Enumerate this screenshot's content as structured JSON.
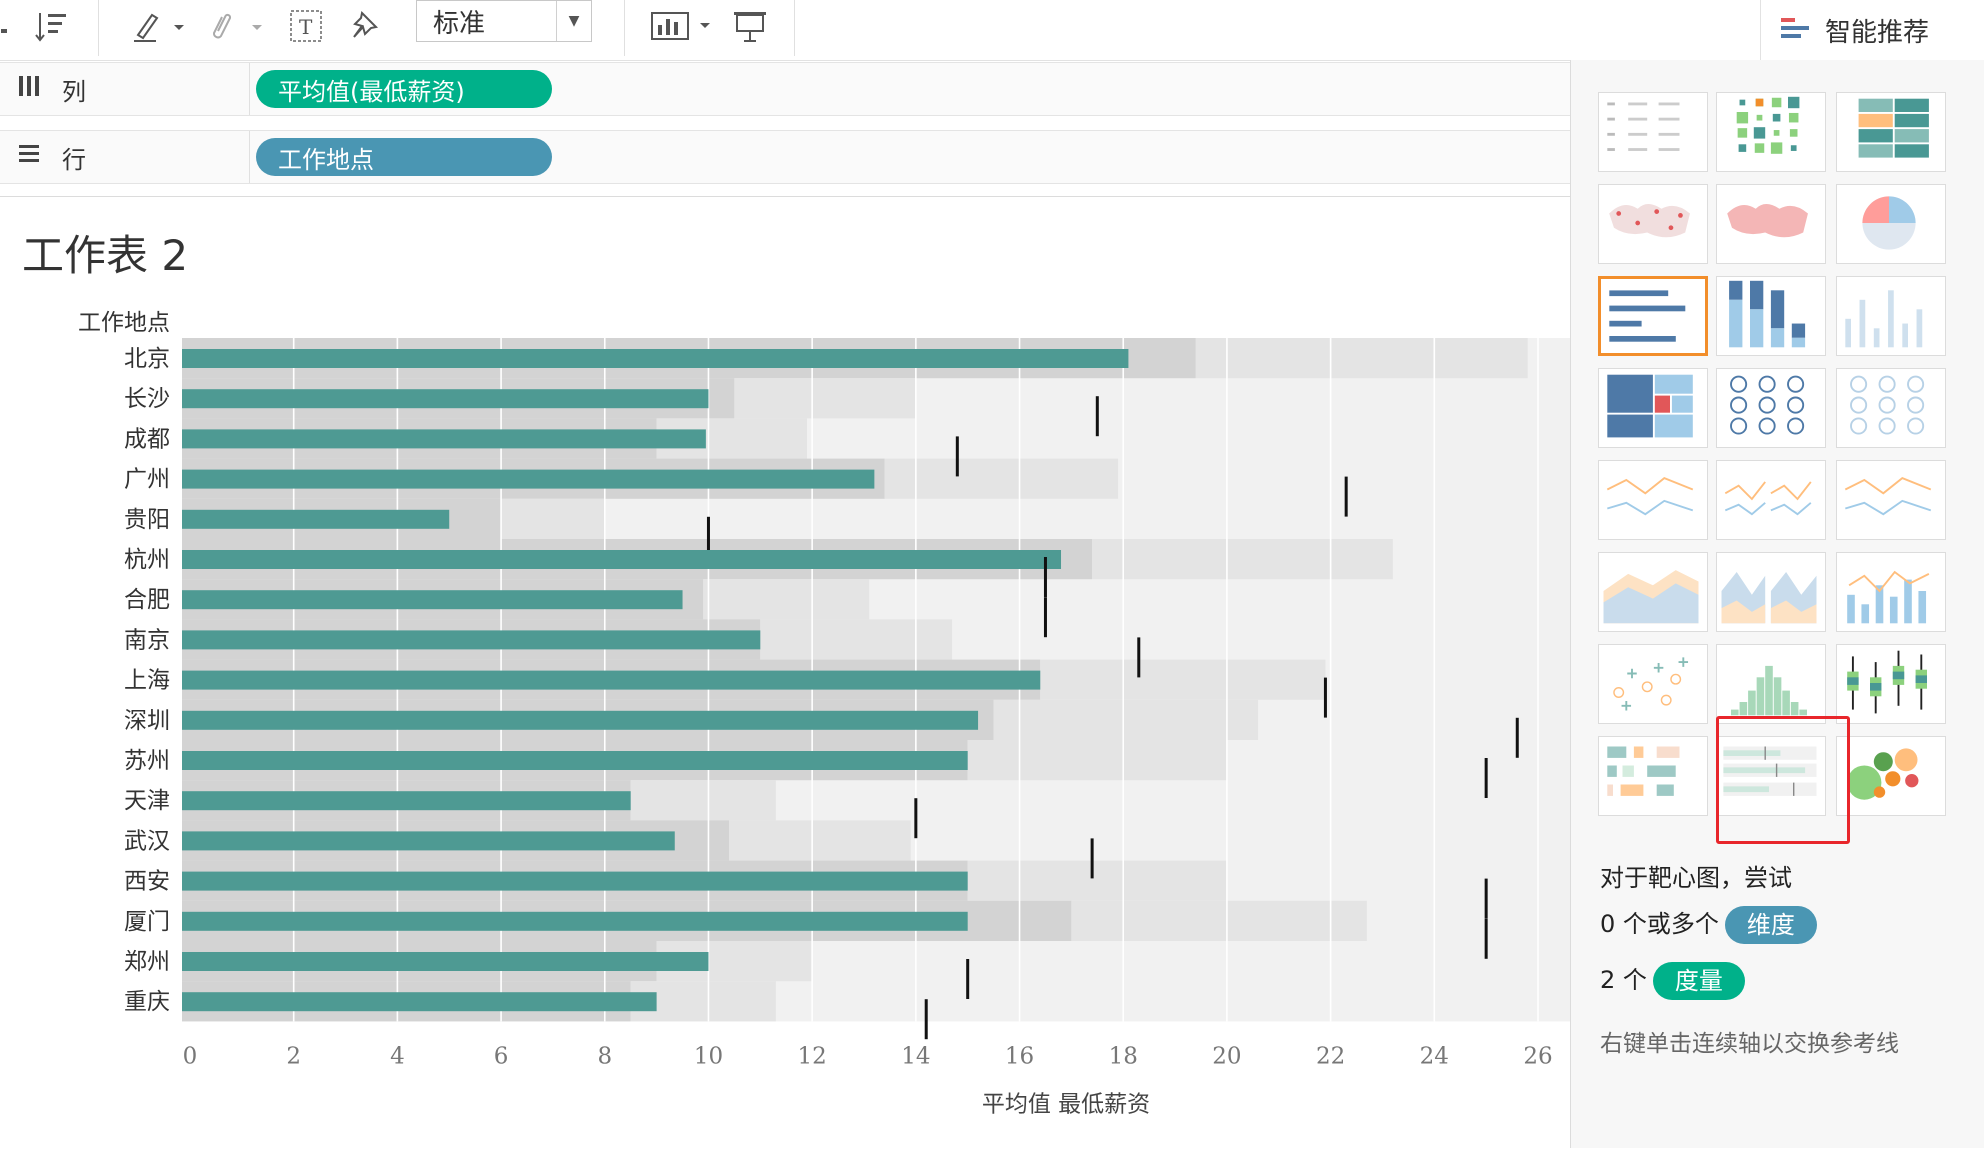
{
  "toolbar": {
    "mark_type_value": "标准",
    "icons": [
      "sort-icon",
      "highlighter-icon",
      "attachment-icon",
      "text-label-icon",
      "pin-icon",
      "show-me-icon",
      "presentation-icon"
    ]
  },
  "shelves": {
    "columns": {
      "label": "列",
      "pill": "平均值(最低薪资)"
    },
    "rows": {
      "label": "行",
      "pill": "工作地点"
    }
  },
  "sheet": {
    "title": "工作表 2"
  },
  "chart_data": {
    "type": "bar",
    "subtype": "bullet",
    "row_header": "工作地点",
    "xlabel": "平均值 最低薪资",
    "xlim": [
      0,
      26
    ],
    "xticks": [
      0,
      2,
      4,
      6,
      8,
      10,
      12,
      14,
      16,
      18,
      20,
      22,
      24,
      26
    ],
    "categories": [
      "北京",
      "长沙",
      "成都",
      "广州",
      "贵阳",
      "杭州",
      "合肥",
      "南京",
      "上海",
      "深圳",
      "苏州",
      "天津",
      "武汉",
      "西安",
      "厦门",
      "郑州",
      "重庆"
    ],
    "values": [
      18.1,
      10.0,
      9.95,
      13.2,
      5.0,
      16.8,
      9.5,
      11.0,
      16.4,
      15.2,
      15.0,
      8.5,
      9.35,
      15.0,
      15.0,
      10.0,
      9.0
    ],
    "bands": [
      [
        19.4,
        25.8
      ],
      [
        10.5,
        14.0
      ],
      [
        9.0,
        11.9
      ],
      [
        13.4,
        17.9
      ],
      [
        6.0,
        8.0
      ],
      [
        17.4,
        23.2
      ],
      [
        9.9,
        13.1
      ],
      [
        11.0,
        14.7
      ],
      [
        16.4,
        21.9
      ],
      [
        15.5,
        20.6
      ],
      [
        15.0,
        20.0
      ],
      [
        8.5,
        11.3
      ],
      [
        10.4,
        13.9
      ],
      [
        15.0,
        20.0
      ],
      [
        17.0,
        22.7
      ],
      [
        9.0,
        12.0
      ],
      [
        8.5,
        11.3
      ]
    ],
    "targets": [
      null,
      17.5,
      14.8,
      22.3,
      10.0,
      16.5,
      16.5,
      18.3,
      21.9,
      25.6,
      25.0,
      14.0,
      17.4,
      25.0,
      25.0,
      15.0,
      14.2
    ],
    "colors": {
      "bar": "#4e9a93",
      "band_dark": "#d3d3d3",
      "band_light": "#e4e4e4",
      "background": "#f1f1f1",
      "target": "#111111"
    },
    "grid": true
  },
  "show_me": {
    "title": "智能推荐",
    "thumbnails": [
      "text-table",
      "heat-map",
      "highlight-table",
      "symbol-map",
      "filled-map",
      "pie-chart",
      "horizontal-bars",
      "stacked-bars",
      "side-by-side-bars",
      "treemap",
      "circle-views",
      "side-by-side-circles",
      "continuous-lines",
      "discrete-lines",
      "dual-lines",
      "area-continuous",
      "area-discrete",
      "dual-combination",
      "scatter-plot",
      "histogram",
      "box-and-whisker",
      "gantt",
      "bullet-graph",
      "packed-bubbles"
    ],
    "selected": "horizontal-bars",
    "highlighted": "bullet-graph",
    "hint_line1": "对于靶心图，尝试",
    "hint_dim_prefix": "0 个或多个",
    "hint_dim_pill": "维度",
    "hint_meas_prefix": "2 个",
    "hint_meas_pill": "度量",
    "hint_note": "右键单击连续轴以交换参考线"
  }
}
